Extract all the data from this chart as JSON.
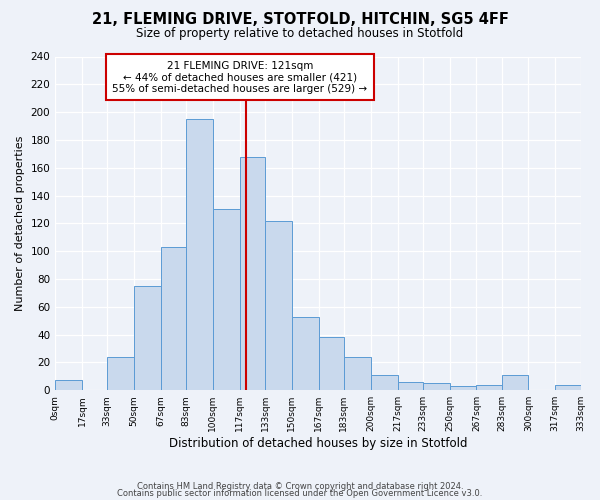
{
  "title": "21, FLEMING DRIVE, STOTFOLD, HITCHIN, SG5 4FF",
  "subtitle": "Size of property relative to detached houses in Stotfold",
  "xlabel": "Distribution of detached houses by size in Stotfold",
  "ylabel": "Number of detached properties",
  "bar_edges": [
    0,
    17,
    33,
    50,
    67,
    83,
    100,
    117,
    133,
    150,
    167,
    183,
    200,
    217,
    233,
    250,
    267,
    283,
    300,
    317,
    333
  ],
  "bar_heights": [
    7,
    0,
    24,
    75,
    103,
    195,
    130,
    168,
    122,
    53,
    38,
    24,
    11,
    6,
    5,
    3,
    4,
    11,
    0,
    4
  ],
  "bar_color": "#c9d9ed",
  "bar_edge_color": "#5b9bd5",
  "property_value": 121,
  "vline_color": "#cc0000",
  "annotation_title": "21 FLEMING DRIVE: 121sqm",
  "annotation_line1": "← 44% of detached houses are smaller (421)",
  "annotation_line2": "55% of semi-detached houses are larger (529) →",
  "annotation_box_color": "#ffffff",
  "annotation_border_color": "#cc0000",
  "ylim": [
    0,
    240
  ],
  "yticks": [
    0,
    20,
    40,
    60,
    80,
    100,
    120,
    140,
    160,
    180,
    200,
    220,
    240
  ],
  "tick_labels": [
    "0sqm",
    "17sqm",
    "33sqm",
    "50sqm",
    "67sqm",
    "83sqm",
    "100sqm",
    "117sqm",
    "133sqm",
    "150sqm",
    "167sqm",
    "183sqm",
    "200sqm",
    "217sqm",
    "233sqm",
    "250sqm",
    "267sqm",
    "283sqm",
    "300sqm",
    "317sqm",
    "333sqm"
  ],
  "footer1": "Contains HM Land Registry data © Crown copyright and database right 2024.",
  "footer2": "Contains public sector information licensed under the Open Government Licence v3.0.",
  "bg_color": "#eef2f9",
  "plot_bg_color": "#eef2f9"
}
